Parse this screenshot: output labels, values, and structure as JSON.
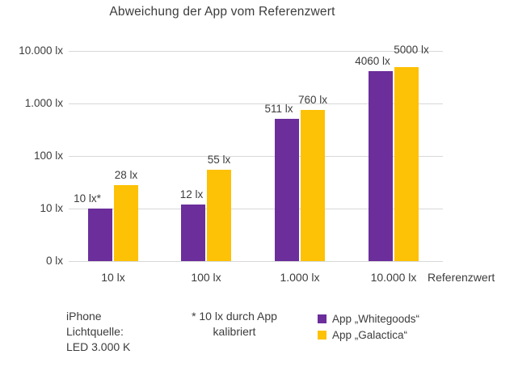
{
  "title": "Abweichung der App vom Referenzwert",
  "chart_data": {
    "type": "bar",
    "title": "Abweichung der App vom Referenzwert",
    "y_scale": "log",
    "grid": "horizontal",
    "legend_position": "bottom-right",
    "y_ticks": [
      {
        "label": "10.000 lx",
        "value": 10000
      },
      {
        "label": "1.000 lx",
        "value": 1000
      },
      {
        "label": "100 lx",
        "value": 100
      },
      {
        "label": "10 lx",
        "value": 10
      },
      {
        "label": "0 lx",
        "value": 1
      }
    ],
    "categories": [
      "10 lx",
      "100 lx",
      "1.000 lx",
      "10.000 lx"
    ],
    "x_axis_label": "Referenzwert",
    "unit": "lx",
    "series": [
      {
        "name": "App „Whitegoods“",
        "color": "#6b2e9b",
        "values": [
          10,
          12,
          511,
          4060
        ],
        "value_labels": [
          "10 lx*",
          "12 lx",
          "511 lx",
          "4060 lx"
        ]
      },
      {
        "name": "App „Galactica“",
        "color": "#fdc105",
        "values": [
          28,
          55,
          760,
          5000
        ],
        "value_labels": [
          "28 lx",
          "55 lx",
          "760 lx",
          "5000 lx"
        ]
      }
    ]
  },
  "footnotes": {
    "device_line1": "iPhone",
    "device_line2": "Lichtquelle:",
    "device_line3": "LED 3.000 K",
    "calibration_line1": "* 10 lx durch App",
    "calibration_line2": "kalibriert"
  },
  "colors": {
    "whitegoods_purple": "#6b2e9b",
    "galactica_yellow": "#fdc105",
    "gridline": "#d8d8d8",
    "text": "#3c3c3c",
    "background": "#ffffff"
  }
}
